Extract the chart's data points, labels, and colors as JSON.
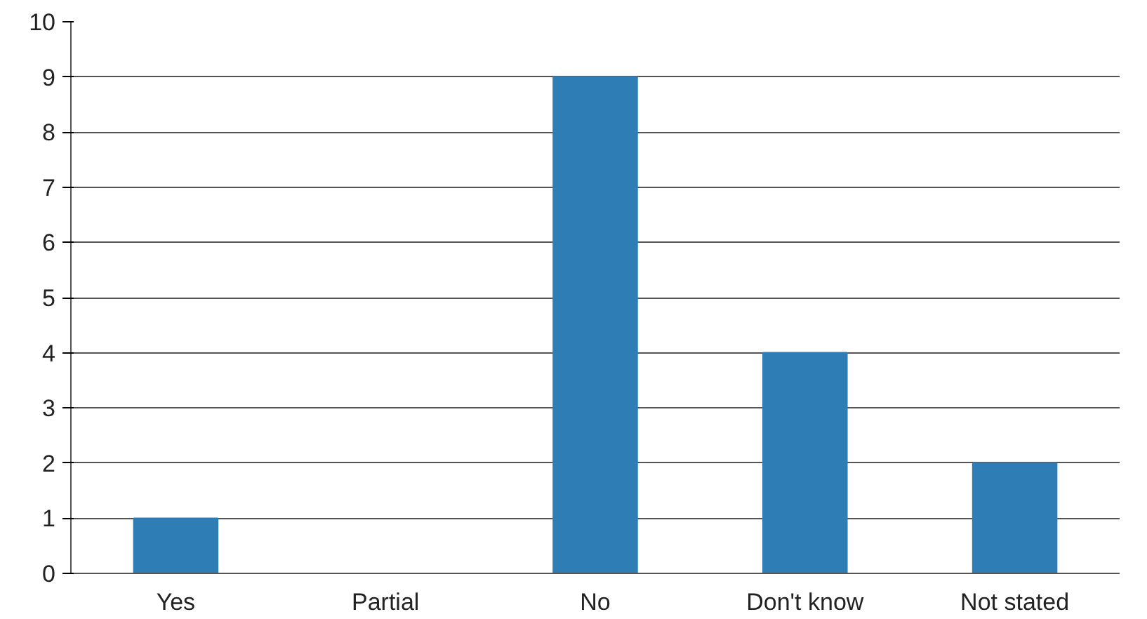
{
  "chart_data": {
    "type": "bar",
    "categories": [
      "Yes",
      "Partial",
      "No",
      "Don't know",
      "Not stated"
    ],
    "values": [
      1,
      0,
      9,
      4,
      2
    ],
    "color": "#2e7db5",
    "ylim": [
      0,
      10
    ],
    "yticks": [
      0,
      1,
      2,
      3,
      4,
      5,
      6,
      7,
      8,
      9,
      10
    ],
    "grid": "y"
  }
}
